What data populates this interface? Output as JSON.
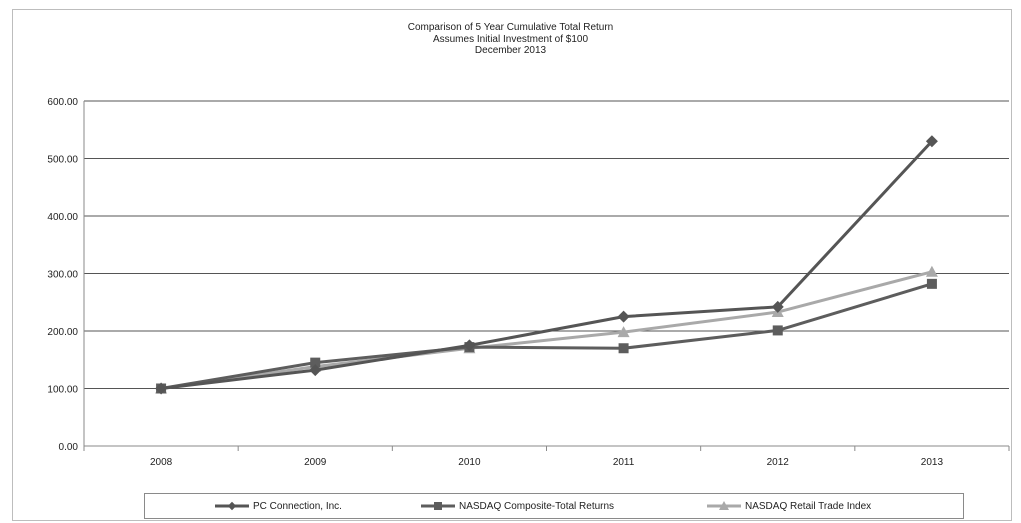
{
  "titles": {
    "line1": "Comparison of 5 Year Cumulative Total Return",
    "line2": "Assumes Initial Investment of $100",
    "line3": "December 2013"
  },
  "colors": {
    "pc": "#555555",
    "nasdaq": "#5d5d5d",
    "retail": "#a9a9a9",
    "grid": "#555555",
    "axis": "#8a8a8a"
  },
  "chart_data": {
    "type": "line",
    "title": "Comparison of 5 Year Cumulative Total Return",
    "subtitle": "Assumes Initial Investment of $100 / December 2013",
    "xlabel": "",
    "ylabel": "",
    "categories": [
      "2008",
      "2009",
      "2010",
      "2011",
      "2012",
      "2013"
    ],
    "ylim": [
      0,
      600
    ],
    "yticks": [
      "0.00",
      "100.00",
      "200.00",
      "300.00",
      "400.00",
      "500.00",
      "600.00"
    ],
    "grid": true,
    "legend_position": "bottom",
    "series": [
      {
        "name": "PC Connection, Inc.",
        "marker": "diamond",
        "values": [
          100,
          132,
          175,
          225,
          242,
          530
        ]
      },
      {
        "name": "NASDAQ Composite-Total Returns",
        "marker": "square",
        "values": [
          100,
          145,
          172,
          170,
          201,
          282
        ]
      },
      {
        "name": "NASDAQ Retail Trade Index",
        "marker": "triangle",
        "values": [
          100,
          138,
          170,
          198,
          233,
          303
        ]
      }
    ]
  }
}
